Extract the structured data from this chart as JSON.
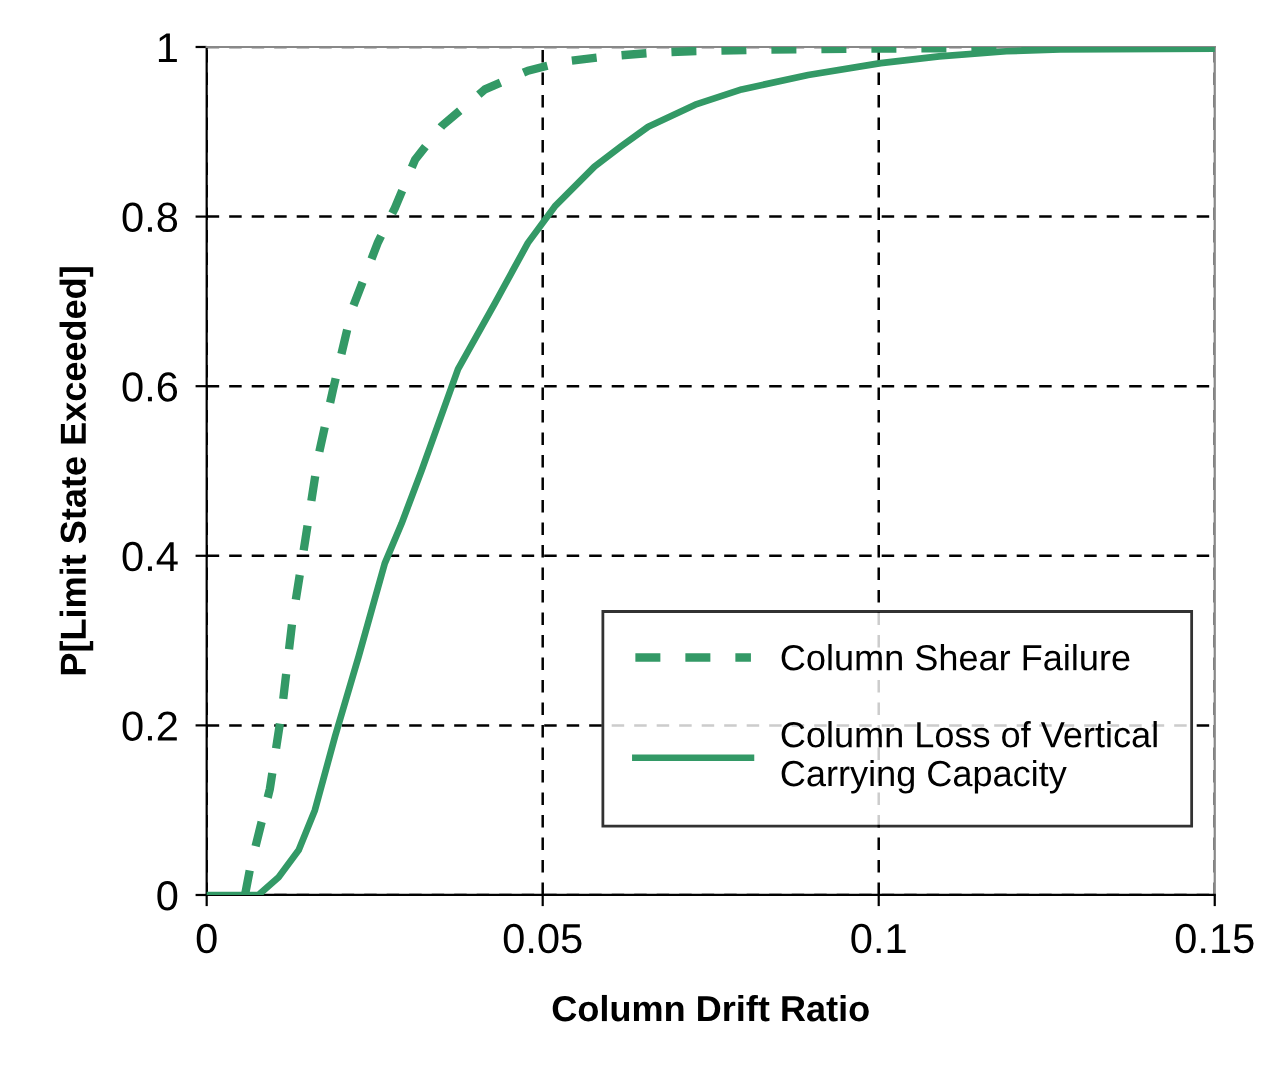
{
  "chart_data": {
    "type": "line",
    "xlabel": "Column Drift Ratio",
    "ylabel": "P[Limit State Exceeded]",
    "xlim": [
      0,
      0.15
    ],
    "ylim": [
      0,
      1
    ],
    "xticks": [
      0,
      0.05,
      0.1,
      0.15
    ],
    "yticks": [
      0,
      0.2,
      0.4,
      0.6,
      0.8,
      1
    ],
    "grid": true,
    "legend": "bottom right",
    "marker": "none",
    "series": [
      {
        "name": "Column Shear Failure",
        "color": "#339966",
        "line_style": "dashed",
        "x": [
          0.0057,
          0.0065,
          0.0094,
          0.0112,
          0.0127,
          0.0147,
          0.0166,
          0.0188,
          0.0216,
          0.0255,
          0.028,
          0.031,
          0.035,
          0.0414,
          0.0478,
          0.0533,
          0.0597,
          0.066,
          0.072,
          0.084,
          0.099,
          0.12,
          0.15
        ],
        "values": [
          0,
          0.033,
          0.125,
          0.218,
          0.32,
          0.42,
          0.517,
          0.596,
          0.69,
          0.77,
          0.81,
          0.867,
          0.907,
          0.95,
          0.972,
          0.983,
          0.989,
          0.993,
          0.995,
          0.997,
          0.998,
          0.999,
          1
        ]
      },
      {
        "name": "Column Loss of Vertical\nCarrying Capacity",
        "color": "#339966",
        "line_style": "solid",
        "x": [
          0,
          0.0077,
          0.0107,
          0.0137,
          0.0161,
          0.0191,
          0.0226,
          0.0265,
          0.029,
          0.032,
          0.0374,
          0.0429,
          0.0478,
          0.0518,
          0.0577,
          0.0617,
          0.0657,
          0.0727,
          0.0796,
          0.0895,
          0.1003,
          0.109,
          0.119,
          0.127,
          0.15
        ],
        "values": [
          0,
          0,
          0.021,
          0.053,
          0.1,
          0.187,
          0.281,
          0.391,
          0.438,
          0.501,
          0.62,
          0.698,
          0.769,
          0.812,
          0.859,
          0.883,
          0.906,
          0.932,
          0.95,
          0.967,
          0.981,
          0.989,
          0.995,
          0.997,
          0.998
        ]
      }
    ]
  }
}
